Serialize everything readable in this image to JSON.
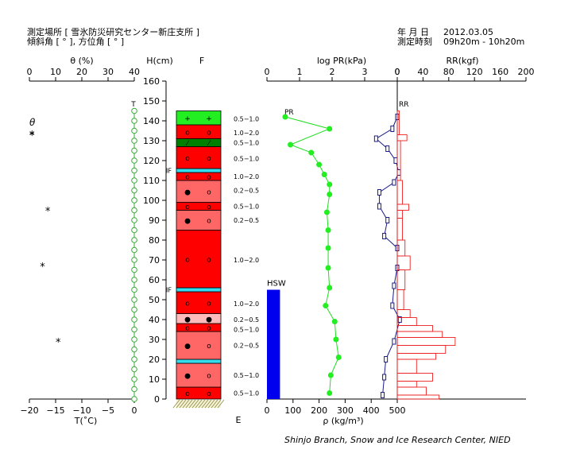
{
  "header": {
    "location_line": "測定場所 [ 雪氷防災研究センター新庄支所 ]",
    "slope_line": "傾斜角 [ ° ], 方位角 [ ° ]",
    "date_label": "年 月 日",
    "date_value": "2012.03.05",
    "time_label": "測定時刻",
    "time_value": "09h20m - 10h20m"
  },
  "footer": {
    "credit": "Shinjo Branch, Snow and Ice Research Center, NIED"
  },
  "chart_data": [
    {
      "type": "scatter",
      "id": "temperature_theta",
      "top_axis_label": "θ (%)",
      "top_ticks": [
        "0",
        "10",
        "20",
        "30",
        "40"
      ],
      "top_range": [
        0,
        40
      ],
      "bottom_axis_label": "T(˚C)",
      "bottom_ticks": [
        "−20",
        "−15",
        "−10",
        "−5",
        "0"
      ],
      "bottom_range": [
        -20,
        0
      ],
      "legend_theta": "θ",
      "legend_star": "*",
      "theta_label": "T",
      "temperature_points": [
        {
          "h": 0,
          "t": 0
        },
        {
          "h": 5,
          "t": 0
        },
        {
          "h": 10,
          "t": 0
        },
        {
          "h": 15,
          "t": 0
        },
        {
          "h": 20,
          "t": 0
        },
        {
          "h": 25,
          "t": 0
        },
        {
          "h": 30,
          "t": 0
        },
        {
          "h": 35,
          "t": 0
        },
        {
          "h": 40,
          "t": 0
        },
        {
          "h": 45,
          "t": 0
        },
        {
          "h": 50,
          "t": 0
        },
        {
          "h": 55,
          "t": 0
        },
        {
          "h": 60,
          "t": 0
        },
        {
          "h": 65,
          "t": 0
        },
        {
          "h": 70,
          "t": 0
        },
        {
          "h": 75,
          "t": 0
        },
        {
          "h": 80,
          "t": 0
        },
        {
          "h": 85,
          "t": 0
        },
        {
          "h": 90,
          "t": 0
        },
        {
          "h": 95,
          "t": 0
        },
        {
          "h": 100,
          "t": 0
        },
        {
          "h": 105,
          "t": 0
        },
        {
          "h": 110,
          "t": 0
        },
        {
          "h": 115,
          "t": 0
        },
        {
          "h": 120,
          "t": 0
        },
        {
          "h": 125,
          "t": 0
        },
        {
          "h": 130,
          "t": 0
        },
        {
          "h": 135,
          "t": 0
        },
        {
          "h": 140,
          "t": 0
        },
        {
          "h": 145,
          "t": 0
        }
      ],
      "theta_stars": [
        {
          "h": 134,
          "theta": 1
        },
        {
          "h": 96,
          "theta": 7
        },
        {
          "h": 68,
          "theta": 5
        },
        {
          "h": 30,
          "theta": 11
        }
      ]
    },
    {
      "type": "table",
      "id": "stratigraphy",
      "y_axis_label": "H(cm)",
      "y_ticks": [
        "0",
        "10",
        "20",
        "30",
        "40",
        "50",
        "60",
        "70",
        "80",
        "90",
        "100",
        "110",
        "120",
        "130",
        "140",
        "150",
        "160"
      ],
      "y_range": [
        0,
        160
      ],
      "column_label": "F",
      "bottom_label": "E",
      "snow_height": 145,
      "layer_colors": {
        "red": "#ff0000",
        "salmon": "#ff6666",
        "pink": "#ffbbbb",
        "green": "#22ee22",
        "darkgreen": "#008000",
        "cyan": "#33ddee"
      },
      "layers": [
        {
          "bottom": 0,
          "top": 6,
          "color": "red",
          "grain1": "o",
          "grain2": "o"
        },
        {
          "bottom": 6,
          "top": 18,
          "color": "salmon",
          "grain1": "●",
          "grain2": "o"
        },
        {
          "bottom": 18,
          "top": 20,
          "color": "cyan",
          "grain1": "",
          "grain2": ""
        },
        {
          "bottom": 20,
          "top": 34,
          "color": "salmon",
          "grain1": "●",
          "grain2": "o"
        },
        {
          "bottom": 34,
          "top": 38,
          "color": "red",
          "grain1": "o",
          "grain2": "o"
        },
        {
          "bottom": 38,
          "top": 43,
          "color": "pink",
          "grain1": "●",
          "grain2": "●"
        },
        {
          "bottom": 43,
          "top": 54,
          "color": "red",
          "grain1": "o",
          "grain2": "o"
        },
        {
          "bottom": 54,
          "top": 56,
          "color": "cyan",
          "grain1": "",
          "grain2": ""
        },
        {
          "bottom": 56,
          "top": 85,
          "color": "red",
          "grain1": "o",
          "grain2": "o"
        },
        {
          "bottom": 85,
          "top": 95,
          "color": "salmon",
          "grain1": "●",
          "grain2": "o"
        },
        {
          "bottom": 95,
          "top": 99,
          "color": "red",
          "grain1": "o",
          "grain2": "o"
        },
        {
          "bottom": 99,
          "top": 110,
          "color": "salmon",
          "grain1": "●",
          "grain2": "o"
        },
        {
          "bottom": 110,
          "top": 114,
          "color": "red",
          "grain1": "o",
          "grain2": "o"
        },
        {
          "bottom": 114,
          "top": 116,
          "color": "cyan",
          "grain1": "",
          "grain2": ""
        },
        {
          "bottom": 116,
          "top": 127,
          "color": "red",
          "grain1": "o",
          "grain2": "o"
        },
        {
          "bottom": 127,
          "top": 131,
          "color": "darkgreen",
          "grain1": "⁄",
          "grain2": "⁄"
        },
        {
          "bottom": 131,
          "top": 138,
          "color": "red",
          "grain1": "o",
          "grain2": "o"
        },
        {
          "bottom": 138,
          "top": 145,
          "color": "green",
          "grain1": "+",
          "grain2": "+"
        }
      ],
      "if_marks": [
        {
          "h": 115,
          "text": "IF"
        },
        {
          "h": 55,
          "text": "IF"
        }
      ],
      "grain_sizes": [
        {
          "h": 141,
          "text": "0.5−1.0"
        },
        {
          "h": 134,
          "text": "1.0−2.0"
        },
        {
          "h": 129,
          "text": "0.5−1.0"
        },
        {
          "h": 121,
          "text": "0.5−1.0"
        },
        {
          "h": 112,
          "text": "1.0−2.0"
        },
        {
          "h": 105,
          "text": "0.2−0.5"
        },
        {
          "h": 97,
          "text": "0.5−1.0"
        },
        {
          "h": 90,
          "text": "0.2−0.5"
        },
        {
          "h": 70,
          "text": "1.0−2.0"
        },
        {
          "h": 48,
          "text": "1.0−2.0"
        },
        {
          "h": 40,
          "text": "0.2−0.5"
        },
        {
          "h": 35,
          "text": "0.5−1.0"
        },
        {
          "h": 27,
          "text": "0.2−0.5"
        },
        {
          "h": 12,
          "text": "0.5−1.0"
        },
        {
          "h": 3,
          "text": "0.5−1.0"
        }
      ]
    },
    {
      "type": "line",
      "id": "density_pr",
      "top_axis_label": "log PR(kPa)",
      "top_ticks": [
        "0",
        "1",
        "2",
        "3",
        "0"
      ],
      "top_range": [
        0,
        4
      ],
      "bottom_axis_label": "ρ (kg/m³)",
      "bottom_ticks": [
        "0",
        "100",
        "200",
        "300",
        "400",
        "500"
      ],
      "bottom_range": [
        0,
        500
      ],
      "pr_label": "PR",
      "hsw_label": "HSW",
      "hsw_value_mm": 55,
      "density": [
        {
          "h": 3,
          "rho": 240
        },
        {
          "h": 12,
          "rho": 245
        },
        {
          "h": 21,
          "rho": 275
        },
        {
          "h": 30,
          "rho": 265
        },
        {
          "h": 39,
          "rho": 260
        },
        {
          "h": 47,
          "rho": 225
        },
        {
          "h": 56,
          "rho": 240
        },
        {
          "h": 66,
          "rho": 235
        },
        {
          "h": 76,
          "rho": 235
        },
        {
          "h": 85,
          "rho": 235
        },
        {
          "h": 94,
          "rho": 230
        },
        {
          "h": 103,
          "rho": 240
        },
        {
          "h": 108,
          "rho": 240
        },
        {
          "h": 113,
          "rho": 220
        },
        {
          "h": 118,
          "rho": 200
        },
        {
          "h": 124,
          "rho": 170
        },
        {
          "h": 128,
          "rho": 90
        },
        {
          "h": 136,
          "rho": 240
        },
        {
          "h": 142,
          "rho": 70
        }
      ],
      "pr": [
        {
          "h": 2,
          "log": 3.55
        },
        {
          "h": 11,
          "log": 3.6
        },
        {
          "h": 20,
          "log": 3.65
        },
        {
          "h": 29,
          "log": 3.9
        },
        {
          "h": 40,
          "log": 4.08
        },
        {
          "h": 47,
          "log": 3.85
        },
        {
          "h": 57,
          "log": 3.9
        },
        {
          "h": 66,
          "log": 4.0
        },
        {
          "h": 76,
          "log": 4.0
        },
        {
          "h": 82,
          "log": 3.6
        },
        {
          "h": 90,
          "log": 3.7
        },
        {
          "h": 97,
          "log": 3.45
        },
        {
          "h": 104,
          "log": 3.45
        },
        {
          "h": 109,
          "log": 3.9
        },
        {
          "h": 114,
          "log": 4.05
        },
        {
          "h": 120,
          "log": 3.95
        },
        {
          "h": 126,
          "log": 3.7
        },
        {
          "h": 131,
          "log": 3.35
        },
        {
          "h": 136,
          "log": 3.85
        },
        {
          "h": 142,
          "log": 4.0
        }
      ]
    },
    {
      "type": "bar",
      "id": "ram_resistance",
      "top_axis_label": "RR(kgf)",
      "top_ticks": [
        "0",
        "40",
        "80",
        "120",
        "160",
        "200"
      ],
      "top_range": [
        0,
        200
      ],
      "rr_label": "RR",
      "segments": [
        {
          "bottom": 0,
          "top": 2,
          "rr": 65
        },
        {
          "bottom": 2,
          "top": 6,
          "rr": 45
        },
        {
          "bottom": 6,
          "top": 9,
          "rr": 30
        },
        {
          "bottom": 9,
          "top": 13,
          "rr": 55
        },
        {
          "bottom": 13,
          "top": 20,
          "rr": 30
        },
        {
          "bottom": 20,
          "top": 23,
          "rr": 60
        },
        {
          "bottom": 23,
          "top": 27,
          "rr": 75
        },
        {
          "bottom": 27,
          "top": 31,
          "rr": 90
        },
        {
          "bottom": 31,
          "top": 34,
          "rr": 70
        },
        {
          "bottom": 34,
          "top": 37,
          "rr": 55
        },
        {
          "bottom": 37,
          "top": 41,
          "rr": 30
        },
        {
          "bottom": 41,
          "top": 45,
          "rr": 20
        },
        {
          "bottom": 45,
          "top": 55,
          "rr": 10
        },
        {
          "bottom": 55,
          "top": 65,
          "rr": 12
        },
        {
          "bottom": 65,
          "top": 72,
          "rr": 20
        },
        {
          "bottom": 72,
          "top": 80,
          "rr": 12
        },
        {
          "bottom": 80,
          "top": 91,
          "rr": 8
        },
        {
          "bottom": 91,
          "top": 95,
          "rr": 8
        },
        {
          "bottom": 95,
          "top": 98,
          "rr": 18
        },
        {
          "bottom": 98,
          "top": 110,
          "rr": 8
        },
        {
          "bottom": 110,
          "top": 130,
          "rr": 5
        },
        {
          "bottom": 130,
          "top": 133,
          "rr": 15
        },
        {
          "bottom": 133,
          "top": 145,
          "rr": 3
        }
      ]
    }
  ]
}
